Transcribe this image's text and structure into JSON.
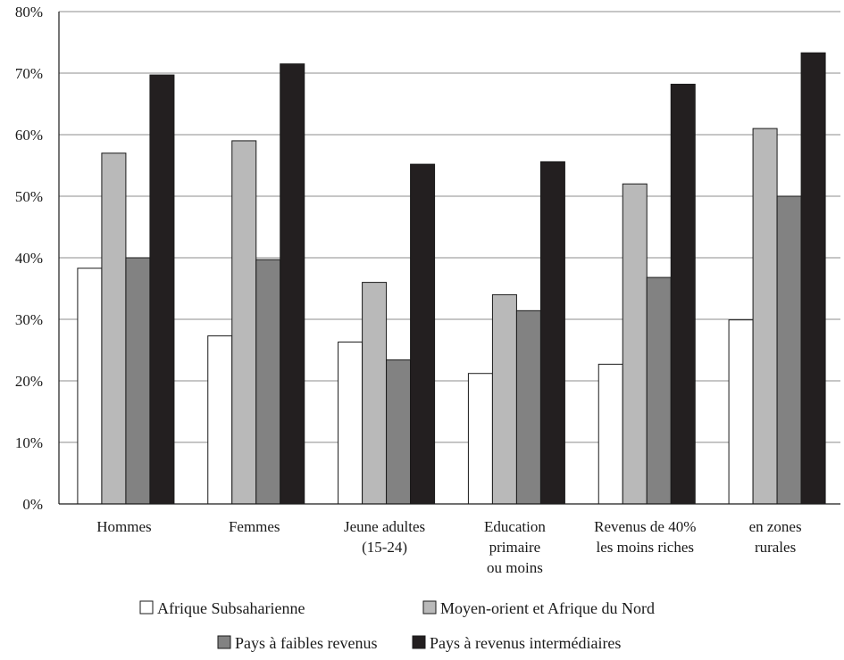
{
  "chart_data": {
    "type": "bar",
    "title": "",
    "xlabel": "",
    "ylabel": "",
    "ylim": [
      0,
      80
    ],
    "y_ticks": [
      "0%",
      "10%",
      "20%",
      "30%",
      "40%",
      "50%",
      "60%",
      "70%",
      "80%"
    ],
    "y_tick_values": [
      0,
      10,
      20,
      30,
      40,
      50,
      60,
      70,
      80
    ],
    "grid": true,
    "legend_position": "bottom",
    "categories": [
      [
        "Hommes"
      ],
      [
        "Femmes"
      ],
      [
        "Jeune adultes",
        "(15-24)"
      ],
      [
        "Education",
        "primaire",
        "ou moins"
      ],
      [
        "Revenus de 40%",
        "les moins riches"
      ],
      [
        "en zones",
        "rurales"
      ]
    ],
    "series": [
      {
        "name": "Afrique Subsaharienne",
        "color": "#ffffff",
        "values": [
          38.3,
          27.3,
          26.3,
          21.2,
          22.7,
          29.9
        ]
      },
      {
        "name": "Moyen-orient et Afrique du Nord",
        "color": "#b9b9b9",
        "values": [
          57,
          59,
          36,
          34,
          52,
          61
        ]
      },
      {
        "name": "Pays à faibles revenus",
        "color": "#828282",
        "values": [
          40,
          39.7,
          23.4,
          31.4,
          36.8,
          50
        ]
      },
      {
        "name": "Pays à revenus intermédiaires",
        "color": "#231f20",
        "values": [
          69.7,
          71.5,
          55.2,
          55.6,
          68.2,
          73.3
        ]
      }
    ]
  }
}
